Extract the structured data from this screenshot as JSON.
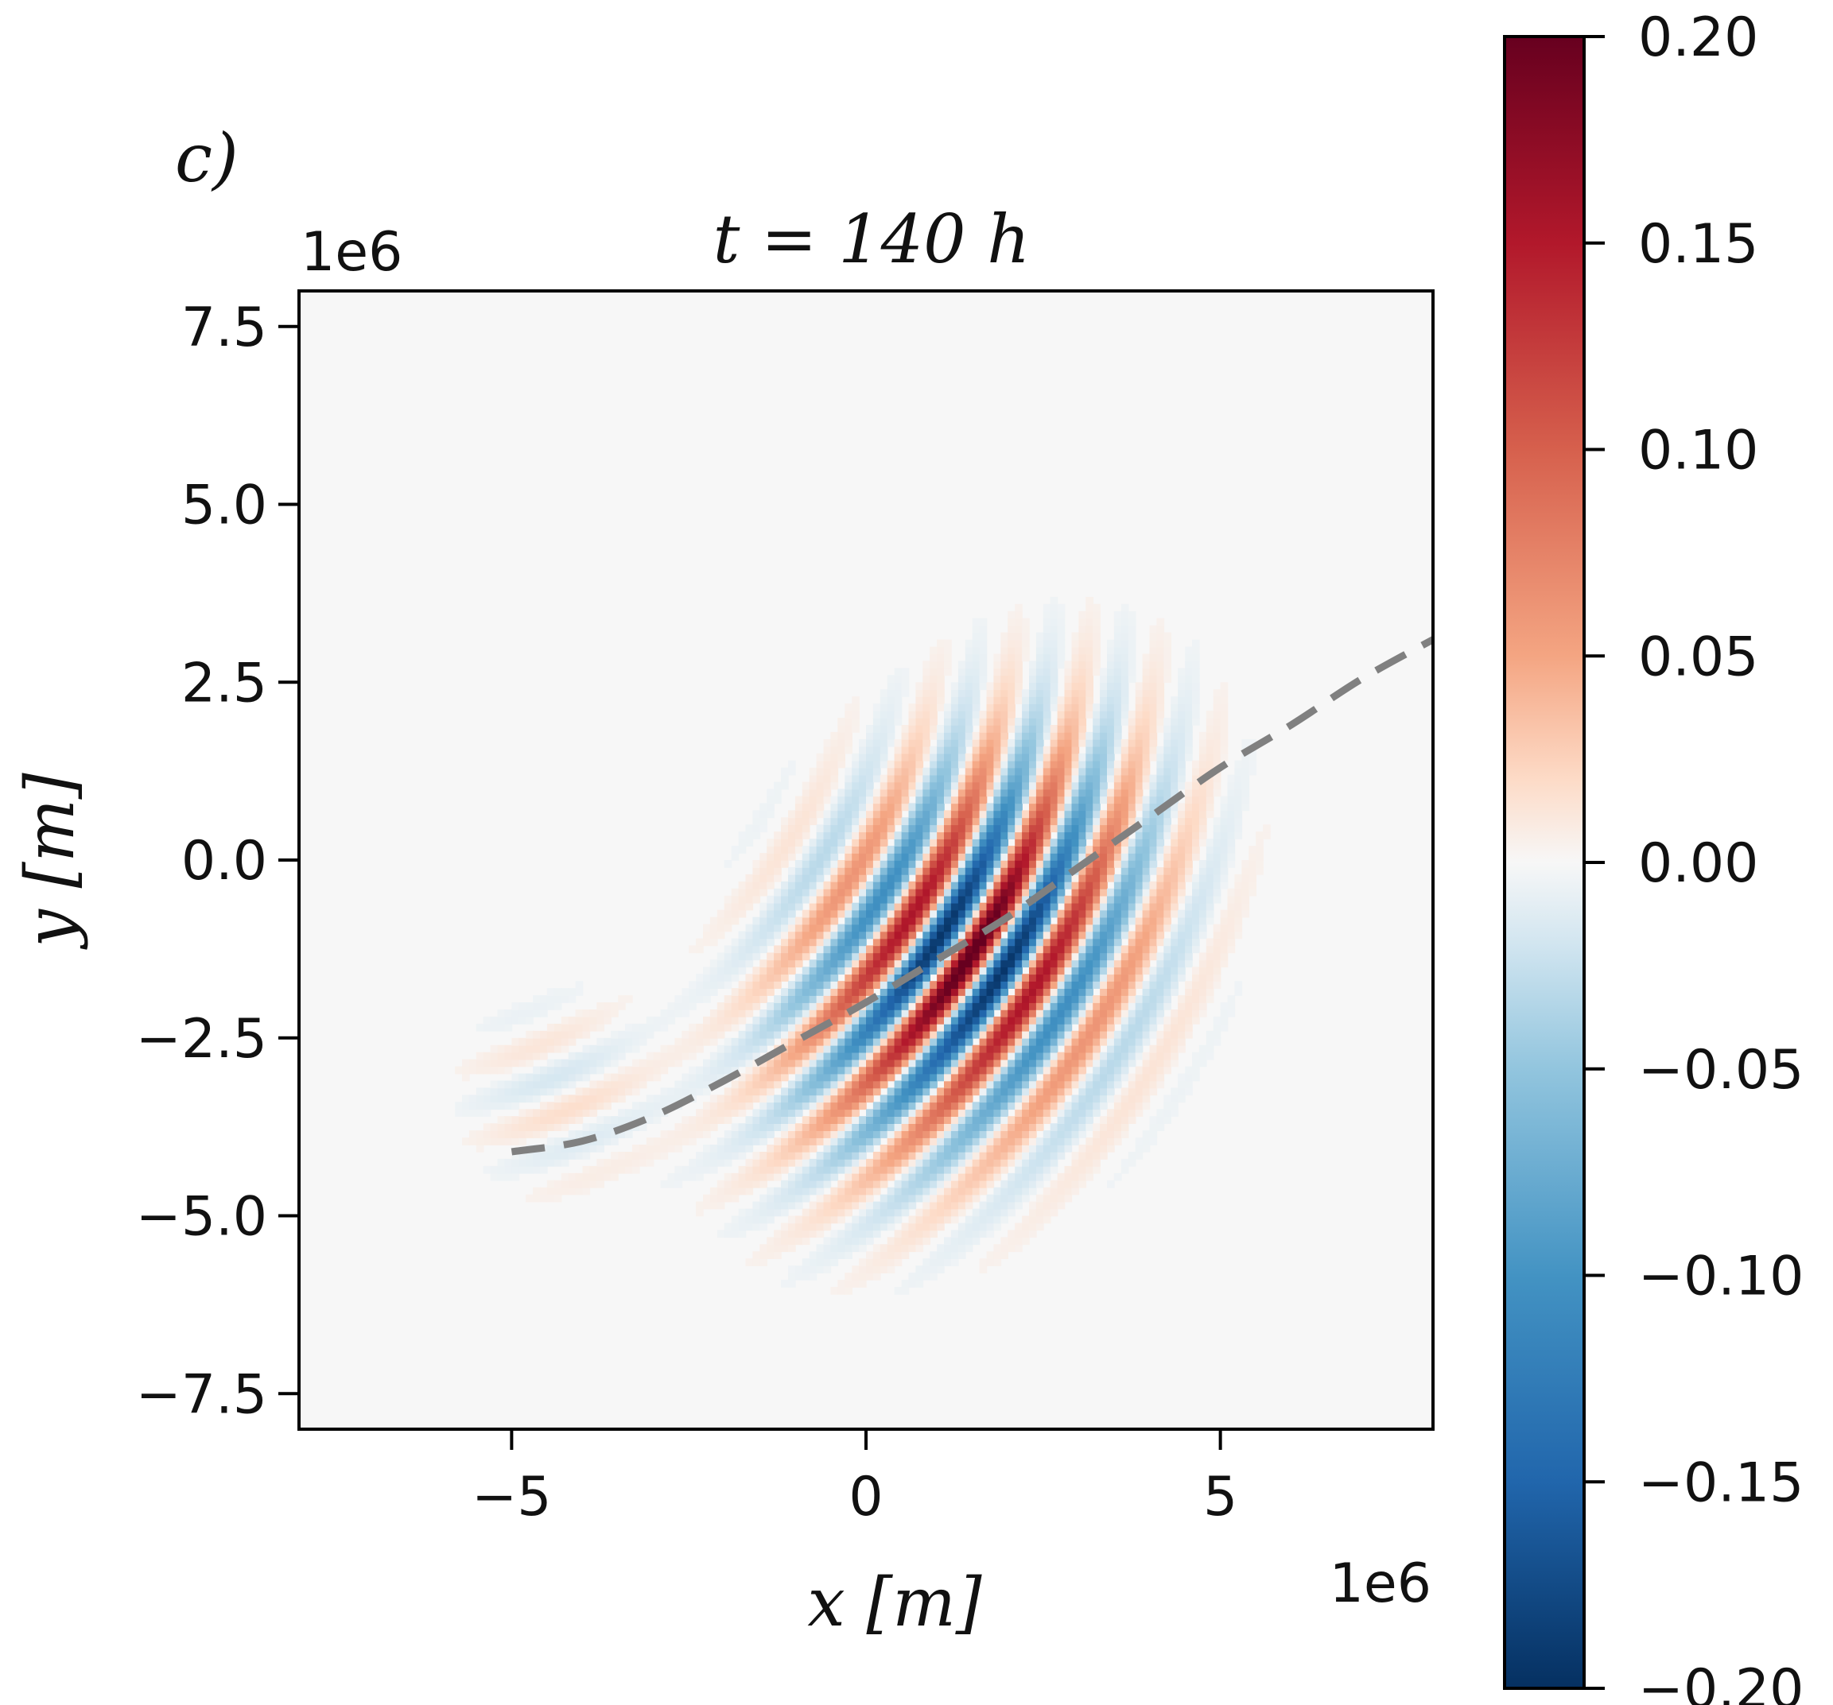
{
  "chart_data": {
    "type": "heatmap",
    "panel_label": "c)",
    "title": "t = 140 h",
    "xlabel": "x [m]",
    "ylabel": "y [m]",
    "x_offset_text": "1e6",
    "y_offset_text": "1e6",
    "xlim": [
      -8,
      8
    ],
    "ylim": [
      -8,
      8
    ],
    "x_ticks": [
      {
        "value": -5,
        "label": "−5"
      },
      {
        "value": 0,
        "label": "0"
      },
      {
        "value": 5,
        "label": "5"
      }
    ],
    "y_ticks": [
      {
        "value": 7.5,
        "label": "7.5"
      },
      {
        "value": 5.0,
        "label": "5.0"
      },
      {
        "value": 2.5,
        "label": "2.5"
      },
      {
        "value": 0.0,
        "label": "0.0"
      },
      {
        "value": -2.5,
        "label": "−2.5"
      },
      {
        "value": -5.0,
        "label": "−5.0"
      },
      {
        "value": -7.5,
        "label": "−7.5"
      }
    ],
    "colorbar": {
      "range": [
        -0.2,
        0.2
      ],
      "colormap": "RdBu_r",
      "ticks": [
        {
          "value": 0.2,
          "label": "0.20"
        },
        {
          "value": 0.15,
          "label": "0.15"
        },
        {
          "value": 0.1,
          "label": "0.10"
        },
        {
          "value": 0.05,
          "label": "0.05"
        },
        {
          "value": 0.0,
          "label": "0.00"
        },
        {
          "value": -0.05,
          "label": "−0.05"
        },
        {
          "value": -0.1,
          "label": "−0.10"
        },
        {
          "value": -0.15,
          "label": "−0.15"
        },
        {
          "value": -0.2,
          "label": "−0.20"
        }
      ],
      "stops": [
        {
          "v": -0.2,
          "color": "#053061"
        },
        {
          "v": -0.15,
          "color": "#2166ac"
        },
        {
          "v": -0.1,
          "color": "#4393c3"
        },
        {
          "v": -0.05,
          "color": "#92c5de"
        },
        {
          "v": -0.02,
          "color": "#d1e5f0"
        },
        {
          "v": 0.0,
          "color": "#f7f7f7"
        },
        {
          "v": 0.02,
          "color": "#fddbc7"
        },
        {
          "v": 0.05,
          "color": "#f4a582"
        },
        {
          "v": 0.1,
          "color": "#d6604d"
        },
        {
          "v": 0.15,
          "color": "#b2182b"
        },
        {
          "v": 0.2,
          "color": "#67001f"
        }
      ]
    },
    "wave_packet": {
      "center": [
        1.5,
        -1.3
      ],
      "amplitude": 0.2,
      "background_value": 0.0
    },
    "ray_path": {
      "style": "dashed",
      "color": "#808080",
      "points": [
        [
          -5.0,
          -4.1
        ],
        [
          -4.0,
          -3.95
        ],
        [
          -3.0,
          -3.6
        ],
        [
          -2.0,
          -3.1
        ],
        [
          -1.0,
          -2.55
        ],
        [
          0.0,
          -2.0
        ],
        [
          1.0,
          -1.4
        ],
        [
          2.0,
          -0.8
        ],
        [
          3.0,
          -0.1
        ],
        [
          4.0,
          0.6
        ],
        [
          5.0,
          1.3
        ],
        [
          6.0,
          1.9
        ],
        [
          7.0,
          2.55
        ],
        [
          8.0,
          3.1
        ]
      ]
    }
  }
}
